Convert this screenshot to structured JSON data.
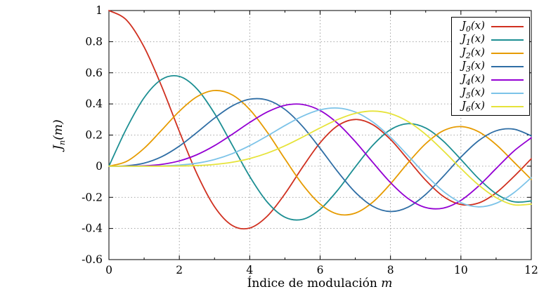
{
  "chart_data": {
    "type": "line",
    "title": "",
    "xlabel_text": "Índice de modulación ",
    "xlabel_var": "m",
    "ylabel_main": "J",
    "ylabel_sub": "n",
    "ylabel_tail": "(m)",
    "legend_tail": "(x)",
    "legend_position": "top-right",
    "grid": "dotted",
    "xlim": [
      0,
      12
    ],
    "ylim": [
      -0.6,
      1
    ],
    "x_major_ticks": [
      0,
      2,
      4,
      6,
      8,
      10,
      12
    ],
    "x_tick_labels": [
      "0",
      "2",
      "4",
      "6",
      "8",
      "10",
      "12"
    ],
    "x_minor_ticks": [
      1,
      3,
      5,
      7,
      9,
      11
    ],
    "y_ticks": [
      -0.6,
      -0.4,
      -0.2,
      0,
      0.2,
      0.4,
      0.6,
      0.8,
      1
    ],
    "y_tick_labels": [
      "-0.6",
      "-0.4",
      "-0.2",
      "0",
      "0.2",
      "0.4",
      "0.6",
      "0.8",
      "1"
    ],
    "x": [
      0,
      0.5,
      1,
      1.5,
      2,
      2.5,
      3,
      3.5,
      4,
      4.5,
      5,
      5.5,
      6,
      6.5,
      7,
      7.5,
      8,
      8.5,
      9,
      9.5,
      10,
      10.5,
      11,
      11.5,
      12
    ],
    "series": [
      {
        "sym": "J",
        "order": "0",
        "name": "J0(x)",
        "color": "#d03020",
        "values": [
          1,
          0.9385,
          0.7652,
          0.5118,
          0.2239,
          -0.0484,
          -0.2601,
          -0.3801,
          -0.3971,
          -0.3205,
          -0.1776,
          -0.0068,
          0.1506,
          0.2601,
          0.3001,
          0.2663,
          0.1717,
          0.0419,
          -0.0903,
          -0.1939,
          -0.2459,
          -0.2366,
          -0.1712,
          -0.0677,
          0.0477
        ]
      },
      {
        "sym": "J",
        "order": "1",
        "name": "J1(x)",
        "color": "#1d8f93",
        "values": [
          0,
          0.2423,
          0.4401,
          0.5579,
          0.5767,
          0.4971,
          0.3391,
          0.1374,
          -0.066,
          -0.2311,
          -0.3276,
          -0.3414,
          -0.2767,
          -0.1538,
          -0.0047,
          0.1352,
          0.2346,
          0.2731,
          0.2453,
          0.1613,
          0.0435,
          -0.0789,
          -0.1768,
          -0.2284,
          -0.2234
        ]
      },
      {
        "sym": "J",
        "order": "2",
        "name": "J2(x)",
        "color": "#e69b00",
        "values": [
          0,
          0.0306,
          0.1149,
          0.2321,
          0.3528,
          0.4461,
          0.4861,
          0.4586,
          0.3641,
          0.2178,
          0.0466,
          -0.1173,
          -0.2429,
          -0.3074,
          -0.3014,
          -0.2303,
          -0.113,
          0.0223,
          0.1448,
          0.2279,
          0.2546,
          0.2216,
          0.139,
          0.0279,
          -0.0849
        ]
      },
      {
        "sym": "J",
        "order": "3",
        "name": "J3(x)",
        "color": "#2f6ea5",
        "values": [
          0,
          0.0026,
          0.0196,
          0.061,
          0.1289,
          0.2166,
          0.3091,
          0.3868,
          0.4302,
          0.4247,
          0.3648,
          0.2561,
          0.1148,
          -0.0353,
          -0.1676,
          -0.2581,
          -0.2911,
          -0.2626,
          -0.1809,
          -0.0653,
          0.0584,
          0.1633,
          0.2273,
          0.2381,
          0.1951
        ]
      },
      {
        "sym": "J",
        "order": "4",
        "name": "J4(x)",
        "color": "#9400d3",
        "values": [
          0,
          0.0002,
          0.0025,
          0.0118,
          0.034,
          0.0738,
          0.132,
          0.2044,
          0.2811,
          0.3484,
          0.3912,
          0.3967,
          0.3576,
          0.2748,
          0.1578,
          0.0238,
          -0.1054,
          -0.2077,
          -0.2655,
          -0.2691,
          -0.2196,
          -0.1283,
          -0.015,
          0.0963,
          0.1825
        ]
      },
      {
        "sym": "J",
        "order": "5",
        "name": "J5(x)",
        "color": "#7cc3e8",
        "values": [
          0,
          0.0,
          0.0002,
          0.0018,
          0.007,
          0.0195,
          0.043,
          0.0804,
          0.1321,
          0.1947,
          0.2611,
          0.3209,
          0.3621,
          0.3736,
          0.3479,
          0.2833,
          0.1858,
          0.0671,
          -0.055,
          -0.1613,
          -0.2341,
          -0.2611,
          -0.2383,
          -0.1711,
          -0.0735
        ]
      },
      {
        "sym": "J",
        "order": "6",
        "name": "J6(x)",
        "color": "#e6e33a",
        "values": [
          0,
          0.0,
          0.0,
          0.0002,
          0.0012,
          0.0042,
          0.0114,
          0.0254,
          0.0491,
          0.0843,
          0.131,
          0.1868,
          0.2458,
          0.2999,
          0.3392,
          0.3541,
          0.3376,
          0.2867,
          0.2043,
          0.0993,
          -0.0145,
          -0.1203,
          -0.2016,
          -0.2477,
          -0.2437
        ]
      }
    ]
  }
}
